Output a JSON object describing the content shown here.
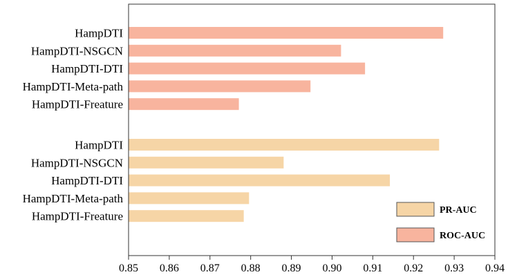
{
  "chart_data": {
    "type": "bar",
    "orientation": "horizontal",
    "title": "",
    "xlabel": "",
    "ylabel": "",
    "xlim": [
      0.85,
      0.94
    ],
    "xticks": [
      "0.85",
      "0.86",
      "0.87",
      "0.88",
      "0.89",
      "0.90",
      "0.91",
      "0.92",
      "0.93",
      "0.94"
    ],
    "grid": false,
    "legend_position": "bottom-right",
    "series": [
      {
        "name": "ROC-AUC",
        "color": "#f8b49e",
        "categories": [
          "HampDTI",
          "HampDTI-NSGCN",
          "HampDTI-DTI",
          "HampDTI-Meta-path",
          "HampDTI-Freature"
        ],
        "values": [
          0.9273,
          0.9022,
          0.9081,
          0.8947,
          0.8771
        ]
      },
      {
        "name": "PR-AUC",
        "color": "#f6d5a6",
        "categories": [
          "HampDTI",
          "HampDTI-NSGCN",
          "HampDTI-DTI",
          "HampDTI-Meta-path",
          "HampDTI-Freature"
        ],
        "values": [
          0.9263,
          0.8881,
          0.9142,
          0.8796,
          0.8783
        ]
      }
    ],
    "legend": [
      {
        "label": "PR-AUC",
        "color": "#f6d5a6"
      },
      {
        "label": "ROC-AUC",
        "color": "#f8b49e"
      }
    ]
  }
}
